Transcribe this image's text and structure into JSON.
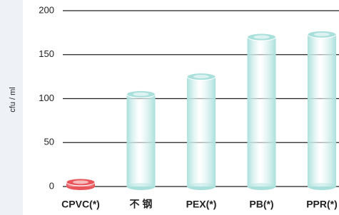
{
  "chart_data": {
    "type": "bar",
    "y_label": "cfu / ml",
    "categories": [
      "CPVC(*)",
      "不 钢",
      "PEX(*)",
      "PB(*)",
      "PPR(*)"
    ],
    "values": [
      5,
      105,
      125,
      170,
      173
    ],
    "colors": [
      "#e8555a",
      "#a9e0dc",
      "#a9e0dc",
      "#a9e0dc",
      "#a9e0dc"
    ],
    "ylim": [
      0,
      200
    ],
    "yticks": [
      0,
      50,
      100,
      150,
      200
    ],
    "grid": true
  }
}
